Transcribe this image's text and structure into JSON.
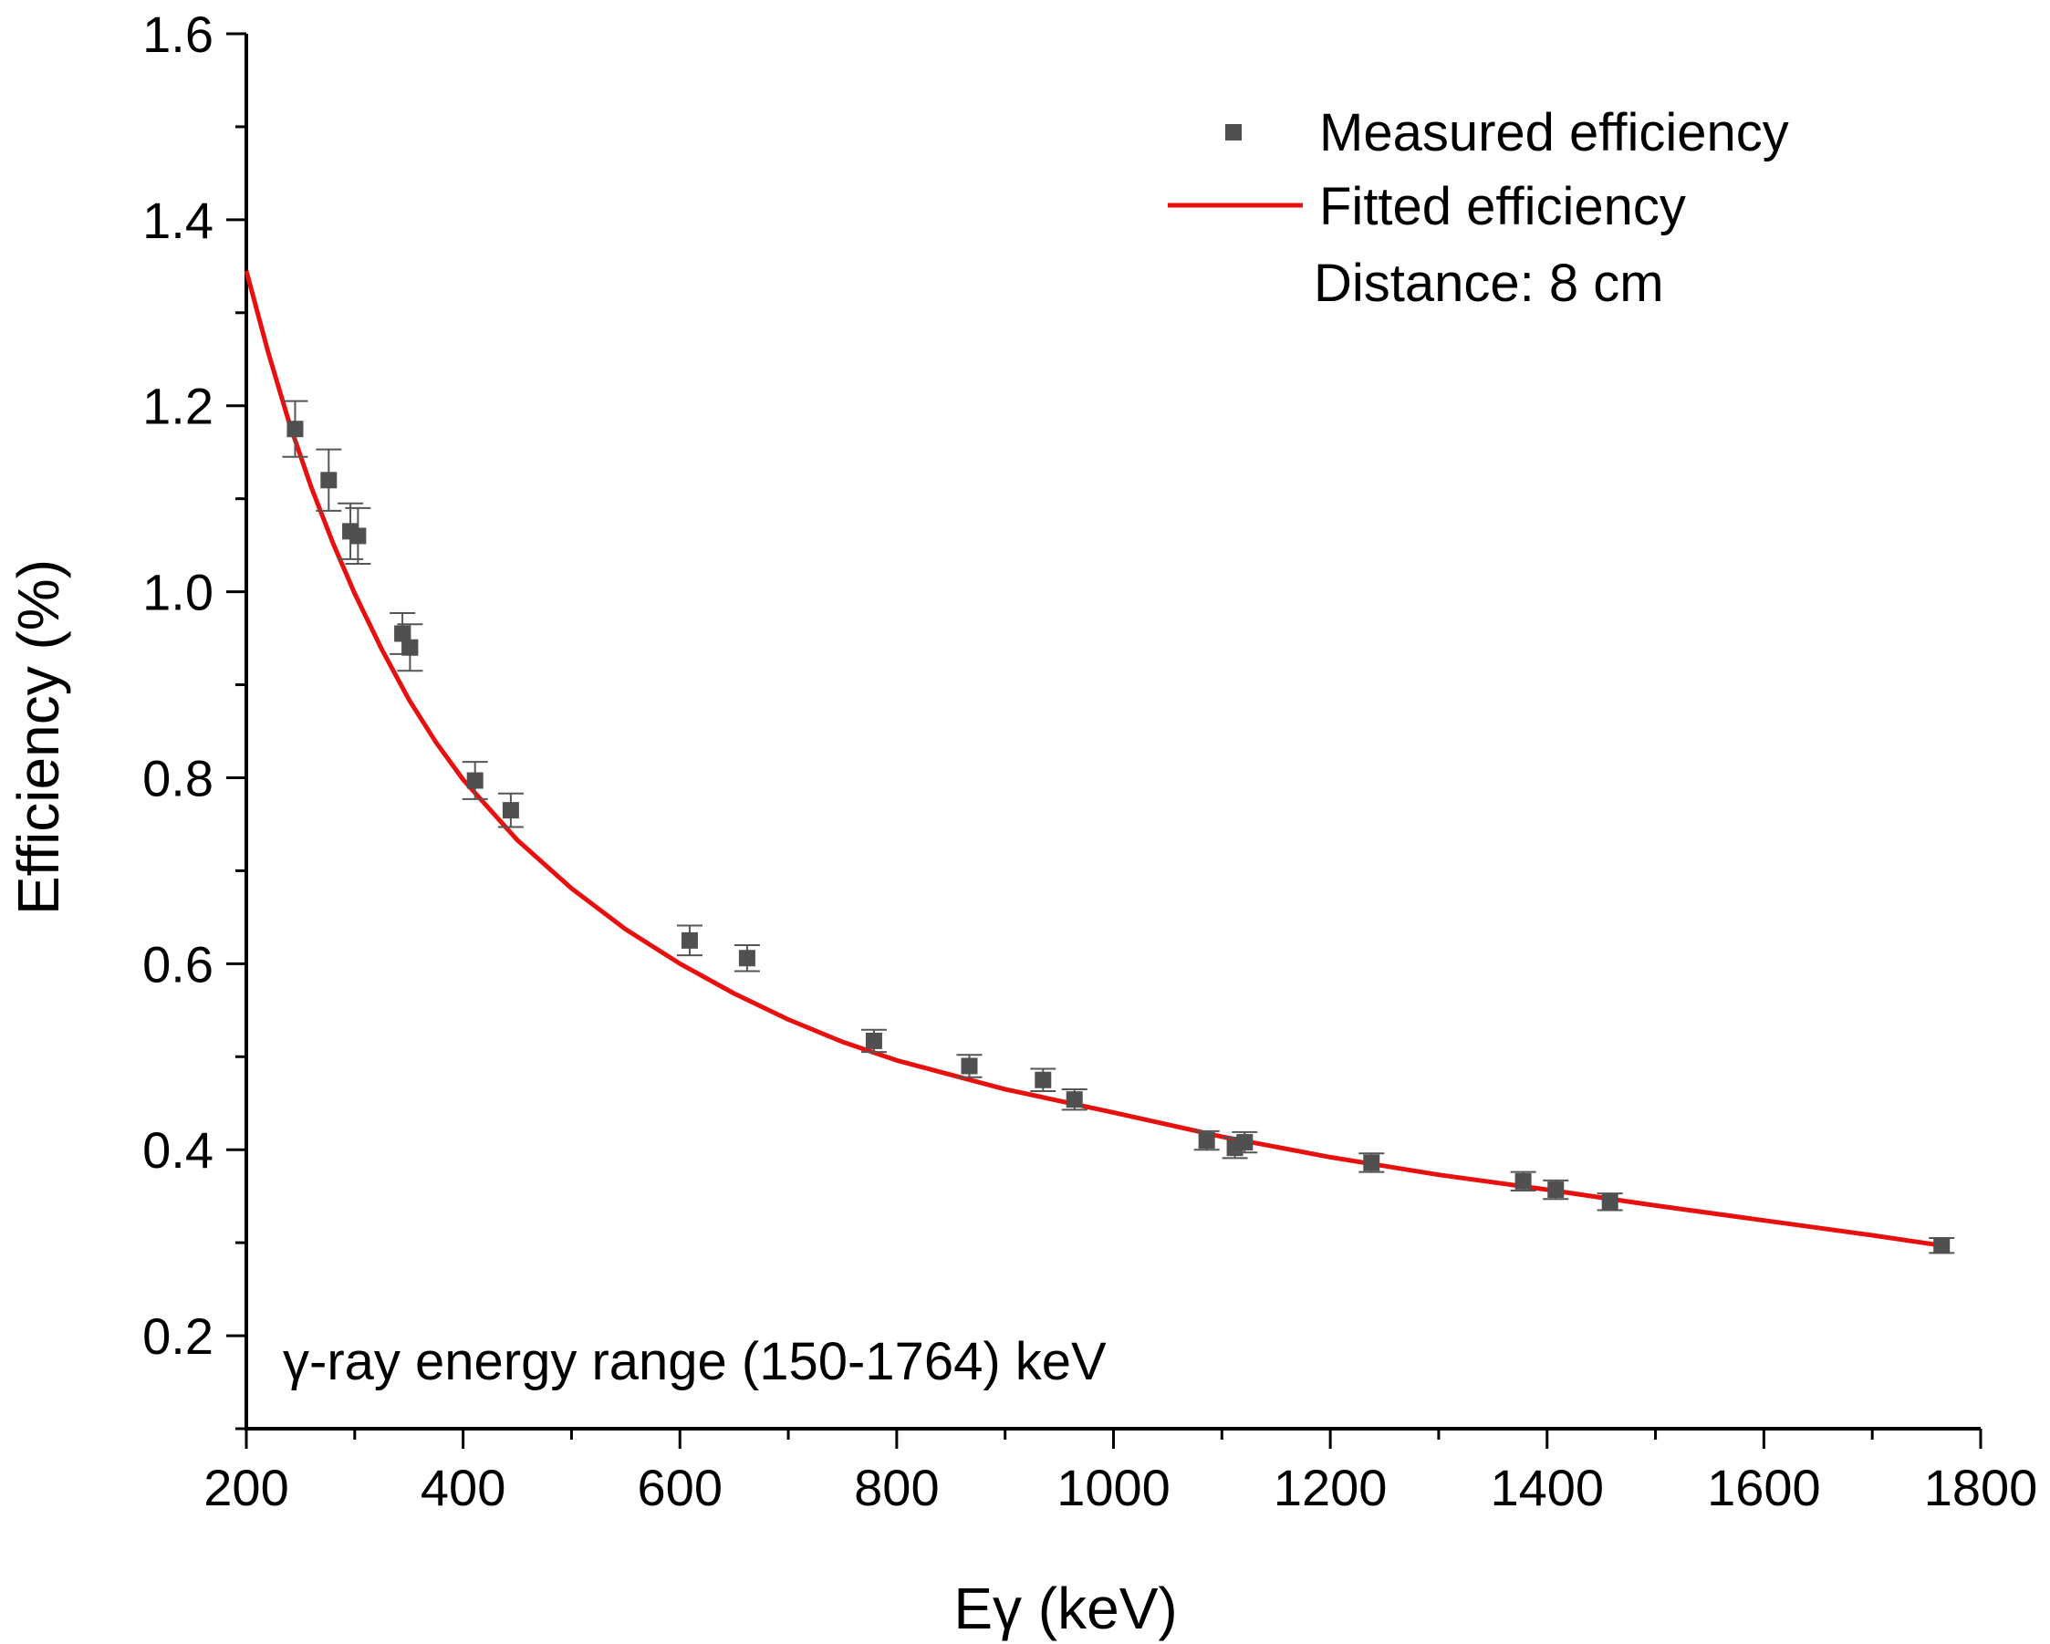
{
  "chart_data": {
    "type": "scatter",
    "xlabel": "Eγ (keV)",
    "ylabel": "Efficiency (%)",
    "xlim": [
      200,
      1800
    ],
    "ylim": [
      0.1,
      1.6
    ],
    "xticks": [
      "200",
      "400",
      "600",
      "800",
      "1000",
      "1200",
      "1400",
      "1600",
      "1800"
    ],
    "yticks": [
      "0.2",
      "0.4",
      "0.6",
      "0.8",
      "1.0",
      "1.2",
      "1.4",
      "1.6"
    ],
    "legend": {
      "position": "top-right",
      "entries": [
        "Measured efficiency",
        "Fitted efficiency"
      ],
      "note": "Distance: 8 cm"
    },
    "annotation": "γ-ray energy range (150-1764) keV",
    "series": [
      {
        "name": "Measured efficiency",
        "kind": "points-with-error",
        "color": "#505050",
        "points": [
          {
            "x": 245,
            "y": 1.175,
            "err": 0.03
          },
          {
            "x": 276,
            "y": 1.12,
            "err": 0.033
          },
          {
            "x": 296,
            "y": 1.065,
            "err": 0.03
          },
          {
            "x": 303,
            "y": 1.06,
            "err": 0.03
          },
          {
            "x": 344,
            "y": 0.955,
            "err": 0.022
          },
          {
            "x": 351,
            "y": 0.94,
            "err": 0.025
          },
          {
            "x": 411,
            "y": 0.797,
            "err": 0.02
          },
          {
            "x": 444,
            "y": 0.765,
            "err": 0.018
          },
          {
            "x": 609,
            "y": 0.625,
            "err": 0.016
          },
          {
            "x": 662,
            "y": 0.606,
            "err": 0.014
          },
          {
            "x": 779,
            "y": 0.517,
            "err": 0.012
          },
          {
            "x": 867,
            "y": 0.49,
            "err": 0.012
          },
          {
            "x": 935,
            "y": 0.475,
            "err": 0.012
          },
          {
            "x": 964,
            "y": 0.454,
            "err": 0.011
          },
          {
            "x": 1086,
            "y": 0.41,
            "err": 0.01
          },
          {
            "x": 1112,
            "y": 0.402,
            "err": 0.011
          },
          {
            "x": 1121,
            "y": 0.408,
            "err": 0.011
          },
          {
            "x": 1238,
            "y": 0.386,
            "err": 0.01
          },
          {
            "x": 1378,
            "y": 0.366,
            "err": 0.01
          },
          {
            "x": 1408,
            "y": 0.357,
            "err": 0.01
          },
          {
            "x": 1458,
            "y": 0.344,
            "err": 0.009
          },
          {
            "x": 1764,
            "y": 0.297,
            "err": 0.008
          }
        ]
      },
      {
        "name": "Fitted efficiency",
        "kind": "line",
        "color": "#e8100e",
        "x": [
          200,
          220,
          240,
          260,
          280,
          300,
          325,
          350,
          375,
          400,
          450,
          500,
          550,
          600,
          650,
          700,
          750,
          800,
          900,
          1000,
          1100,
          1200,
          1300,
          1400,
          1500,
          1600,
          1700,
          1764
        ],
        "y": [
          1.345,
          1.258,
          1.18,
          1.112,
          1.052,
          0.998,
          0.938,
          0.884,
          0.838,
          0.798,
          0.733,
          0.681,
          0.637,
          0.6,
          0.568,
          0.54,
          0.516,
          0.496,
          0.465,
          0.44,
          0.414,
          0.392,
          0.373,
          0.357,
          0.34,
          0.324,
          0.308,
          0.297
        ]
      }
    ]
  }
}
